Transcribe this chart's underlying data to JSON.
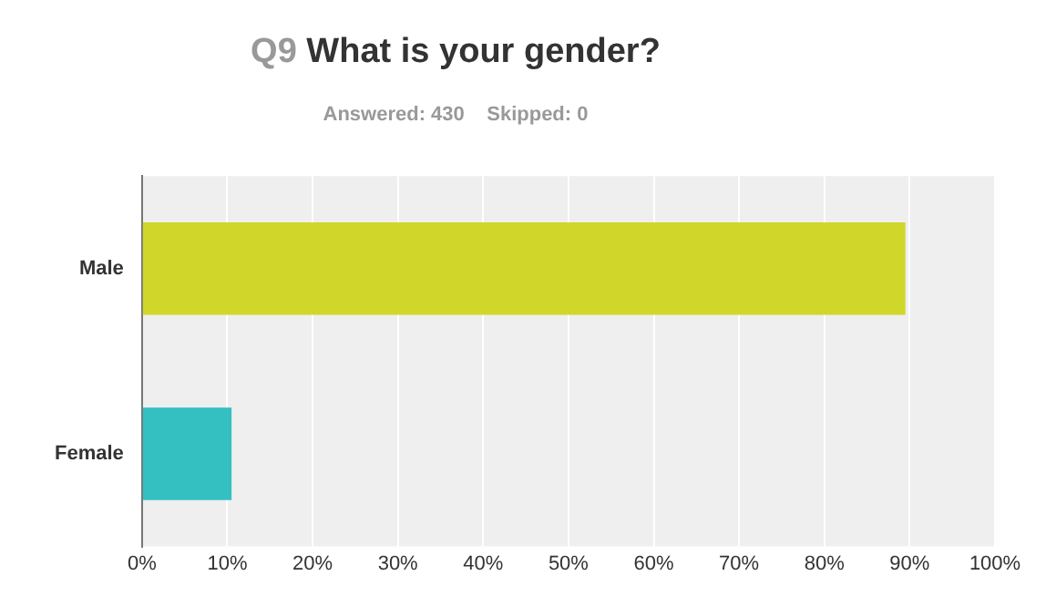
{
  "chart_data": {
    "type": "bar",
    "orientation": "horizontal",
    "title": "Q9 What is your gender?",
    "subtitle": "Answered: 430    Skipped: 0",
    "categories": [
      "Male",
      "Female"
    ],
    "values": [
      89.5,
      10.5
    ],
    "colors": [
      "#d0d72a",
      "#34bfc1"
    ],
    "xlim": [
      0,
      100
    ],
    "xticks": [
      {
        "value": 0,
        "label": "0%"
      },
      {
        "value": 10,
        "label": "10%"
      },
      {
        "value": 20,
        "label": "20%"
      },
      {
        "value": 30,
        "label": "30%"
      },
      {
        "value": 40,
        "label": "40%"
      },
      {
        "value": 50,
        "label": "50%"
      },
      {
        "value": 60,
        "label": "60%"
      },
      {
        "value": 70,
        "label": "70%"
      },
      {
        "value": 80,
        "label": "80%"
      },
      {
        "value": 90,
        "label": "90%"
      },
      {
        "value": 100,
        "label": "100%"
      }
    ],
    "grid": "x",
    "legend": false
  }
}
